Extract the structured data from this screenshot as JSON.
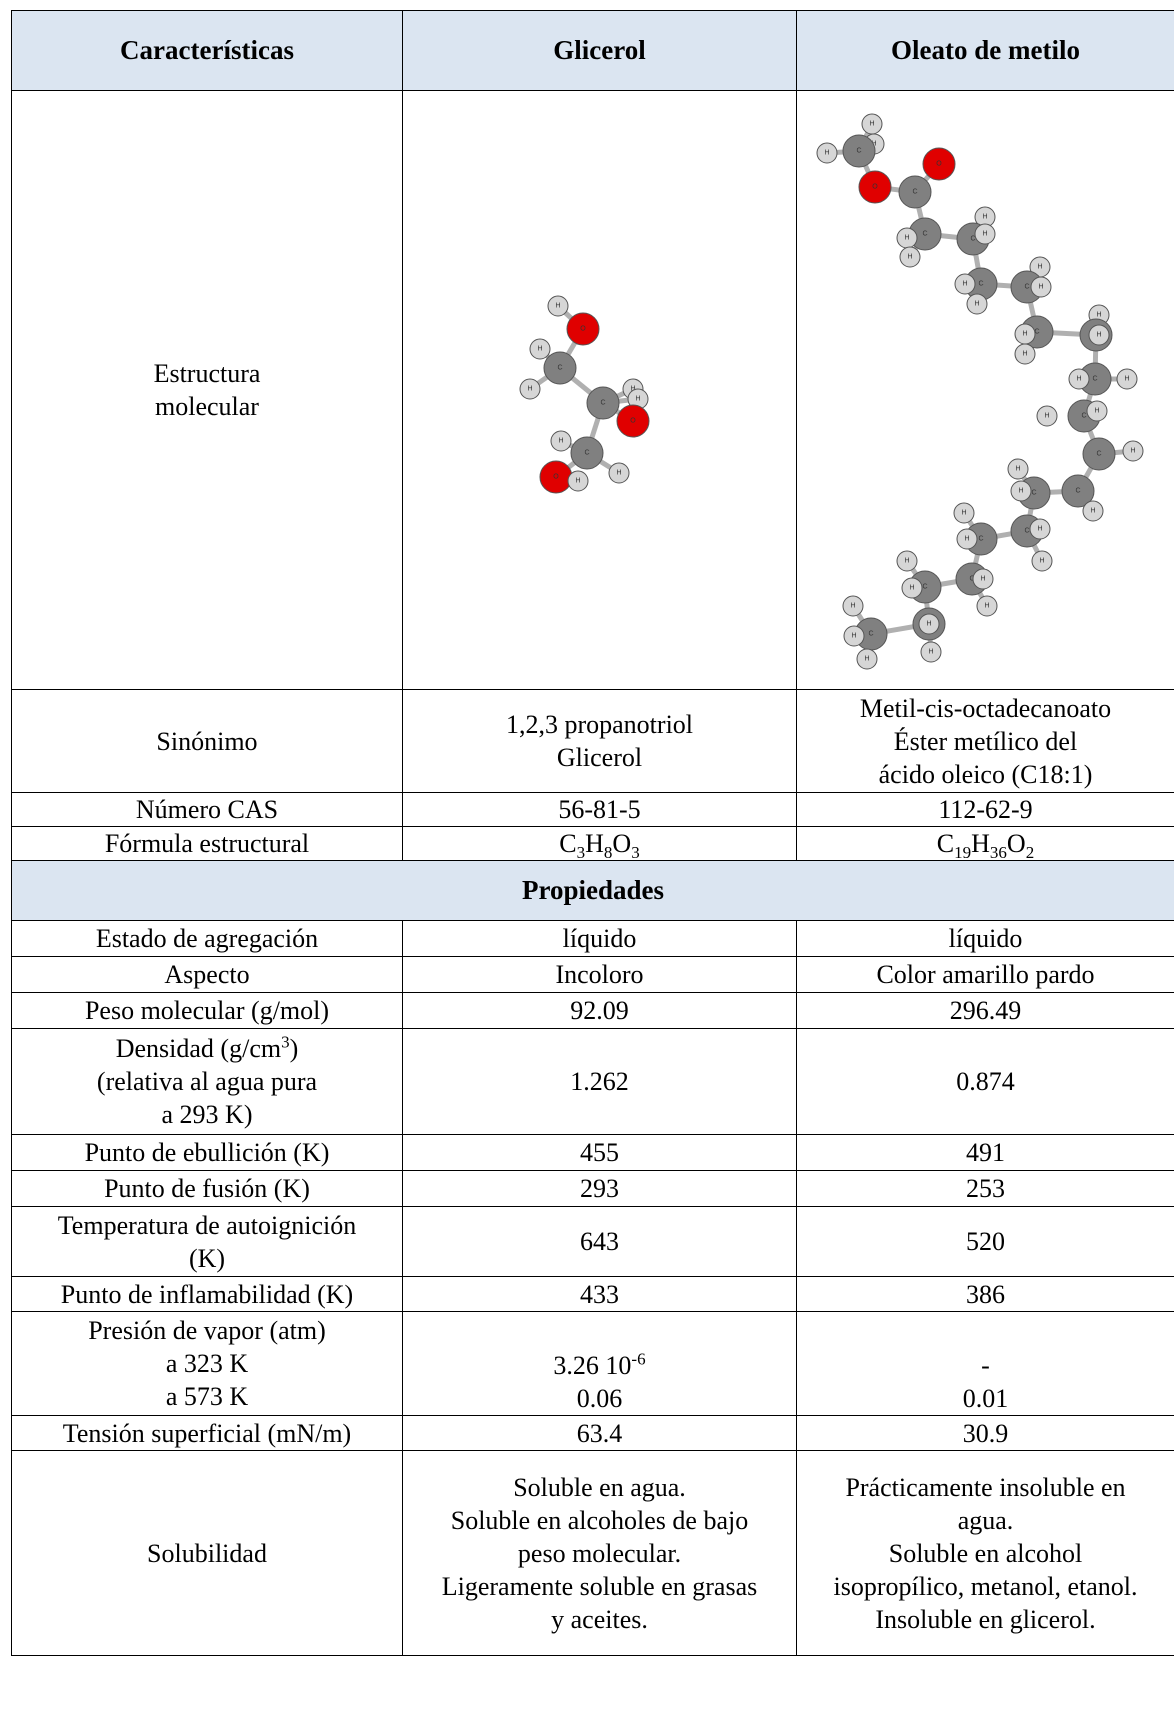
{
  "headers": {
    "col1": "Características",
    "col2": "Glicerol",
    "col3": "Oleato de metilo"
  },
  "structure": {
    "label_lines": [
      "Estructura",
      "molecular"
    ],
    "atom_labels": {
      "H": "H",
      "C": "C",
      "O": "O"
    }
  },
  "synonym": {
    "label": "Sinónimo",
    "glicerol_lines": [
      "1,2,3 propanotriol",
      "Glicerol"
    ],
    "oleato_lines": [
      "Metil-cis-octadecanoato",
      "Éster metílico del",
      "ácido oleico (C18:1)"
    ]
  },
  "cas": {
    "label": "Número CAS",
    "glicerol": "56-81-5",
    "oleato": "112-62-9"
  },
  "formula": {
    "label": "Fórmula estructural",
    "glicerol": {
      "a": "C",
      "a_sub": "3",
      "b": "H",
      "b_sub": "8",
      "c": "O",
      "c_sub": "3"
    },
    "oleato": {
      "a": "C",
      "a_sub": "19",
      "b": "H",
      "b_sub": "36",
      "c": "O",
      "c_sub": "2"
    }
  },
  "section_title": "Propiedades",
  "rows": [
    {
      "label": "Estado de agregación",
      "glicerol": "líquido",
      "oleato": "líquido"
    },
    {
      "label": "Aspecto",
      "glicerol": "Incoloro",
      "oleato": "Color amarillo pardo"
    },
    {
      "label": "Peso molecular (g/mol)",
      "glicerol": "92.09",
      "oleato": "296.49"
    }
  ],
  "density": {
    "label_line1_prefix": "Densidad (g/cm",
    "label_line1_sup": "3",
    "label_line1_suffix": ")",
    "label_line2": "(relativa al agua pura",
    "label_line3": "a 293 K)",
    "glicerol": "1.262",
    "oleato": "0.874"
  },
  "rows2": [
    {
      "label": "Punto de ebullición (K)",
      "glicerol": "455",
      "oleato": "491"
    },
    {
      "label": "Punto de fusión (K)",
      "glicerol": "293",
      "oleato": "253"
    }
  ],
  "autoignition": {
    "label_line1": "Temperatura de autoignición",
    "label_line2": "(K)",
    "glicerol": "643",
    "oleato": "520"
  },
  "flash": {
    "label": "Punto de inflamabilidad (K)",
    "glicerol": "433",
    "oleato": "386"
  },
  "vapor": {
    "label_lines": [
      "Presión de vapor (atm)",
      "a 323 K",
      "a 573 K"
    ],
    "glicerol_323_base": "3.26 10",
    "glicerol_323_exp": "-6",
    "glicerol_573": "0.06",
    "oleato_323": "-",
    "oleato_573": "0.01"
  },
  "surface": {
    "label": "Tensión superficial (mN/m)",
    "glicerol": "63.4",
    "oleato": "30.9"
  },
  "solubility": {
    "label": "Solubilidad",
    "glicerol_lines": [
      "Soluble en agua.",
      "Soluble en alcoholes de bajo",
      "peso molecular.",
      "Ligeramente soluble en grasas",
      "y aceites."
    ],
    "oleato_lines": [
      "Prácticamente insoluble en",
      "agua.",
      "Soluble en alcohol",
      "isopropílico, metanol, etanol.",
      "Insoluble en glicerol."
    ]
  },
  "colors": {
    "header_bg": "#dbe5f1",
    "carbon": "#808080",
    "oxygen": "#e00000",
    "hydrogen": "#d6d6d6",
    "bond": "#b0b0b0"
  }
}
